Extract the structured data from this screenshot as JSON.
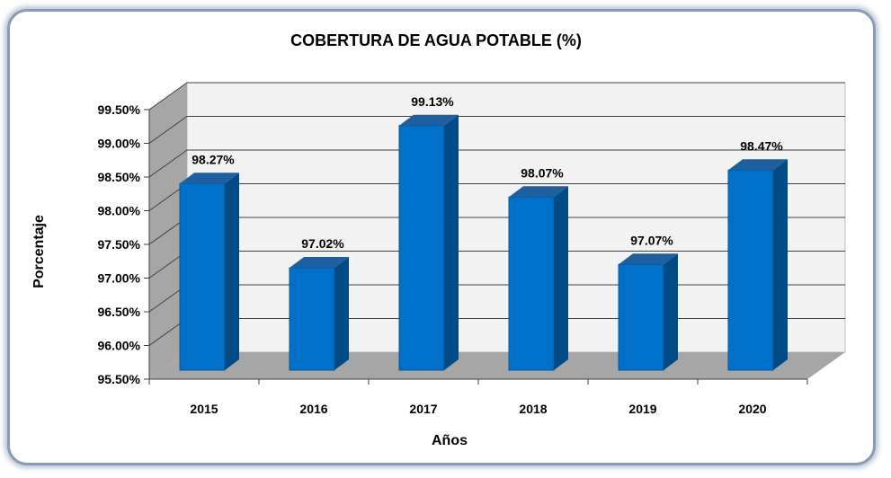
{
  "chart_data": {
    "type": "bar",
    "title": "COBERTURA DE AGUA POTABLE (%)",
    "xlabel": "Años",
    "ylabel": "Porcentaje",
    "categories": [
      "2015",
      "2016",
      "2017",
      "2018",
      "2019",
      "2020"
    ],
    "values": [
      98.27,
      97.02,
      99.13,
      98.07,
      97.07,
      98.47
    ],
    "data_labels": [
      "98.27%",
      "97.02%",
      "99.13%",
      "98.07%",
      "97.07%",
      "98.47%"
    ],
    "y_ticks": [
      95.5,
      96.0,
      96.5,
      97.0,
      97.5,
      98.0,
      98.5,
      99.0,
      99.5
    ],
    "y_tick_labels": [
      "95.50%",
      "96.00%",
      "96.50%",
      "97.00%",
      "97.50%",
      "98.00%",
      "98.50%",
      "99.00%",
      "99.50%"
    ],
    "ylim": [
      95.5,
      99.5
    ],
    "grid": true,
    "three_d": true,
    "colors": {
      "bar_front": "#0070c8",
      "bar_side": "#004a85",
      "bar_top": "#1e5fa0",
      "wall": "#f2f2f2",
      "side_wall": "#a6a6a6",
      "floor": "#a6a6a6",
      "gridline": "#404040"
    }
  }
}
